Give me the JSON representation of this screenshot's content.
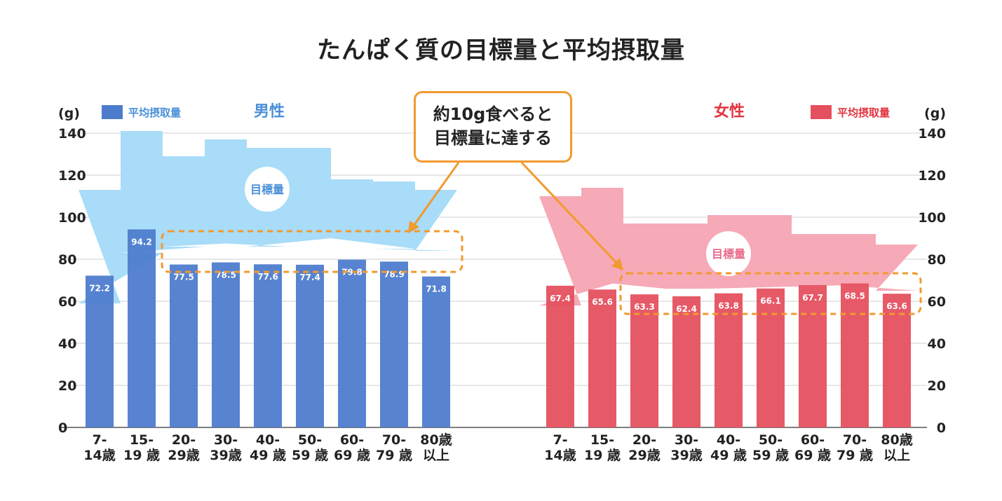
{
  "title": "たんぱく質の目標量と平均摂取量",
  "callout": {
    "line1": "約10g食べると",
    "line2": "目標量に達する"
  },
  "colors": {
    "male_bar": "#4e7ccd",
    "male_band": "#a8dcf8",
    "male_text": "#4a90d9",
    "female_bar": "#e5505f",
    "female_band": "#f6a9b6",
    "female_text": "#e2353f",
    "female_band_label": "#e86b8c",
    "orange": "#f29a2e",
    "grid": "#cfcfcf"
  },
  "chart_data": [
    {
      "type": "bar",
      "panel": "male",
      "heading": "男性",
      "unit": "(g)",
      "legend": "平均摂取量",
      "band_label": "目標量",
      "ylim": [
        0,
        140
      ],
      "yticks": [
        "0",
        "20",
        "40",
        "60",
        "80",
        "100",
        "120",
        "140"
      ],
      "categories": [
        [
          "7-",
          "14歳"
        ],
        [
          "15-",
          "19 歳"
        ],
        [
          "20-",
          "29歳"
        ],
        [
          "30-",
          "39歳"
        ],
        [
          "40-",
          "49 歳"
        ],
        [
          "50-",
          "59 歳"
        ],
        [
          "60-",
          "69 歳"
        ],
        [
          "70-",
          "79 歳"
        ],
        [
          "80歳",
          "以上"
        ]
      ],
      "values": [
        72.2,
        94.2,
        77.5,
        78.5,
        77.6,
        77.4,
        79.8,
        78.9,
        71.8
      ],
      "value_labels": [
        "72.2",
        "94.2",
        "77.5",
        "78.5",
        "77.6",
        "77.4",
        "79.8",
        "78.9",
        "71.8"
      ],
      "target_low": [
        59,
        83,
        86,
        88,
        86,
        90,
        90,
        85,
        84
      ],
      "target_high": [
        113,
        141,
        129,
        137,
        133,
        133,
        118,
        117,
        113
      ]
    },
    {
      "type": "bar",
      "panel": "female",
      "heading": "女性",
      "unit": "(g)",
      "legend": "平均摂取量",
      "band_label": "目標量",
      "ylim": [
        0,
        140
      ],
      "yticks": [
        "0",
        "20",
        "40",
        "60",
        "80",
        "100",
        "120",
        "140"
      ],
      "categories": [
        [
          "7-",
          "14歳"
        ],
        [
          "15-",
          "19 歳"
        ],
        [
          "20-",
          "29歳"
        ],
        [
          "30-",
          "39歳"
        ],
        [
          "40-",
          "49 歳"
        ],
        [
          "50-",
          "59 歳"
        ],
        [
          "60-",
          "69 歳"
        ],
        [
          "70-",
          "79 歳"
        ],
        [
          "80歳",
          "以上"
        ]
      ],
      "values": [
        67.4,
        65.6,
        63.3,
        62.4,
        63.8,
        66.1,
        67.7,
        68.5,
        63.6
      ],
      "value_labels": [
        "67.4",
        "65.6",
        "63.3",
        "62.4",
        "63.8",
        "66.1",
        "67.7",
        "68.5",
        "63.6"
      ],
      "target_low": [
        58,
        70,
        66,
        66,
        66,
        67,
        67,
        68,
        65
      ],
      "target_high": [
        110,
        114,
        97,
        97,
        101,
        101,
        92,
        92,
        87
      ]
    }
  ]
}
